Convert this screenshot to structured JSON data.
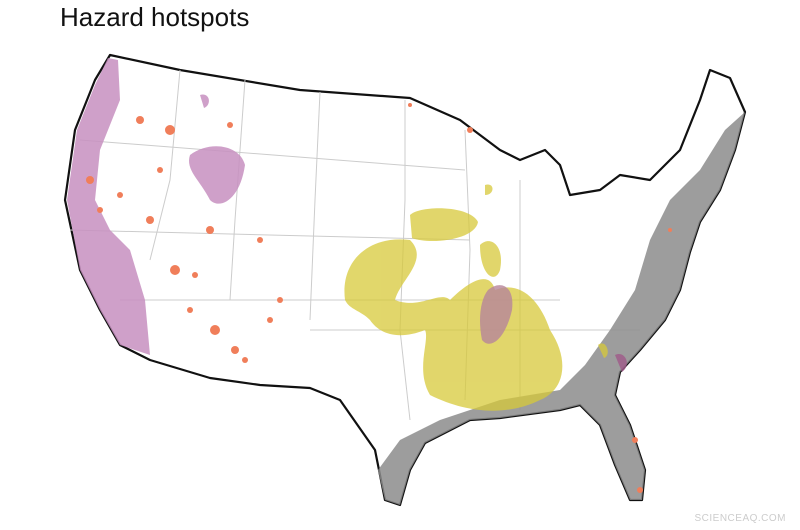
{
  "title": "Hazard hotspots",
  "watermark": "SCIENCEAQ.COM"
}
